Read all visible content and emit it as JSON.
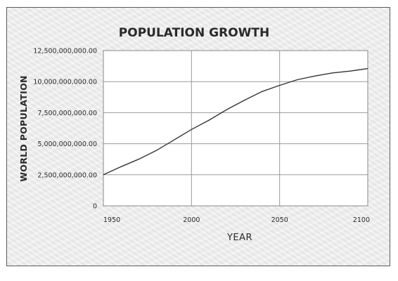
{
  "chart_data": {
    "type": "line",
    "title": "POPULATION GROWTH",
    "xlabel": "YEAR",
    "ylabel": "WORLD POPULATION",
    "xlim": [
      1950,
      2100
    ],
    "ylim": [
      0,
      12500000000
    ],
    "x_ticks": [
      1950,
      2000,
      2050,
      2100
    ],
    "x_tick_labels": [
      "1950",
      "2000",
      "2050",
      "2100"
    ],
    "y_ticks": [
      0,
      2500000000,
      5000000000,
      7500000000,
      10000000000,
      12500000000
    ],
    "y_tick_labels": [
      "0",
      "2,500,000,000.00",
      "5,000,000,000.00",
      "7,500,000,000.00",
      "10,000,000,000.00",
      "12,500,000,000.00"
    ],
    "grid": true,
    "legend": "none",
    "line_color": "#333333",
    "series": [
      {
        "x": [
          1950,
          1960,
          1970,
          1980,
          1990,
          2000,
          2010,
          2020,
          2030,
          2040,
          2050,
          2060,
          2070,
          2080,
          2090,
          2100
        ],
        "y": [
          2500000000,
          3150000000,
          3750000000,
          4450000000,
          5300000000,
          6150000000,
          6900000000,
          7750000000,
          8500000000,
          9200000000,
          9700000000,
          10150000000,
          10450000000,
          10700000000,
          10850000000,
          11050000000
        ]
      }
    ]
  }
}
